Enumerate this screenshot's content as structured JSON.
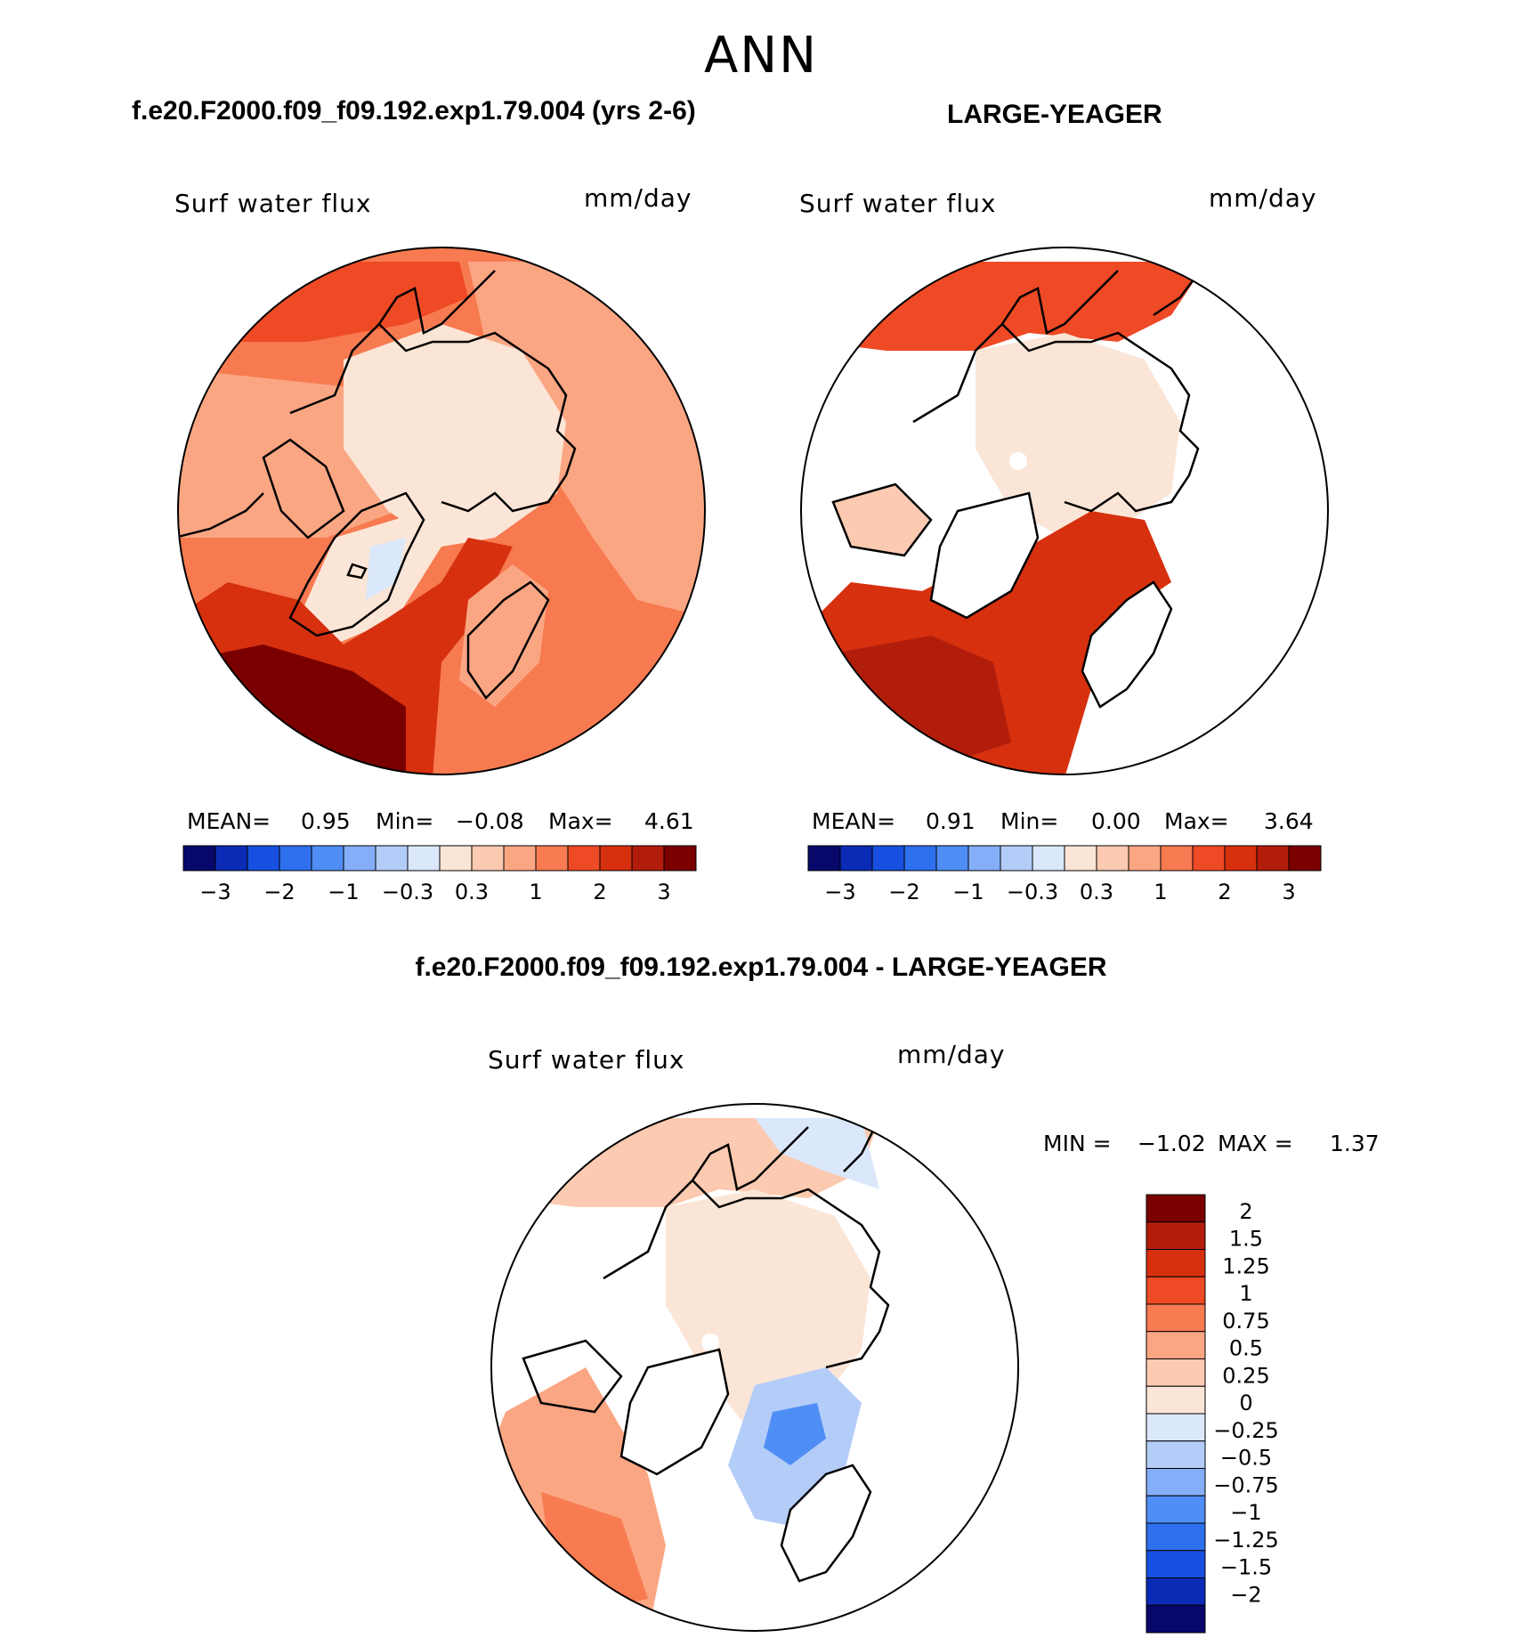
{
  "season": "ANN",
  "panels": {
    "left": {
      "case_title": "f.e20.F2000.f09_f09.192.exp1.79.004 (yrs 2-6)",
      "variable": "Surf water flux",
      "units": "mm/day",
      "stats": {
        "mean_label": "MEAN=",
        "mean": "0.95",
        "min_label": "Min=",
        "min": "−0.08",
        "max_label": "Max=",
        "max": "4.61"
      }
    },
    "right": {
      "case_title": "LARGE-YEAGER",
      "variable": "Surf water flux",
      "units": "mm/day",
      "stats": {
        "mean_label": "MEAN=",
        "mean": "0.91",
        "min_label": "Min=",
        "min": "0.00",
        "max_label": "Max=",
        "max": "3.64"
      }
    },
    "diff": {
      "case_title": "f.e20.F2000.f09_f09.192.exp1.79.004 - LARGE-YEAGER",
      "variable": "Surf water flux",
      "units": "mm/day",
      "minmax": {
        "min_label": "MIN =",
        "min": "−1.02",
        "max_label": "MAX =",
        "max": "1.37"
      }
    }
  },
  "colorbar_main": {
    "colors": [
      "#08086b",
      "#0a2bb5",
      "#1750e0",
      "#2e6fee",
      "#4f8ef5",
      "#84aef7",
      "#b4cdf8",
      "#dbe8fb",
      "#fbe5d6",
      "#fccab0",
      "#fba683",
      "#f77a50",
      "#ee4a25",
      "#d6300f",
      "#b21d0b",
      "#7a0000"
    ],
    "tick_labels": [
      "−3",
      "−2",
      "−1",
      "−0.3",
      "0.3",
      "1",
      "2",
      "3"
    ]
  },
  "colorbar_diff": {
    "colors": [
      "#7a0000",
      "#b21d0b",
      "#d6300f",
      "#ee4a25",
      "#f77a50",
      "#fba683",
      "#fccab0",
      "#fbe5d6",
      "#dbe8fb",
      "#b4cdf8",
      "#84aef7",
      "#4f8ef5",
      "#2e6fee",
      "#1750e0",
      "#0a2bb5",
      "#08086b"
    ],
    "tick_labels": [
      "2",
      "1.5",
      "1.25",
      "1",
      "0.75",
      "0.5",
      "0.25",
      "0",
      "−0.25",
      "−0.5",
      "−0.75",
      "−1",
      "−1.25",
      "−1.5",
      "−2"
    ]
  },
  "palette": {
    "coast": "#000000",
    "land_white": "#ffffff"
  }
}
